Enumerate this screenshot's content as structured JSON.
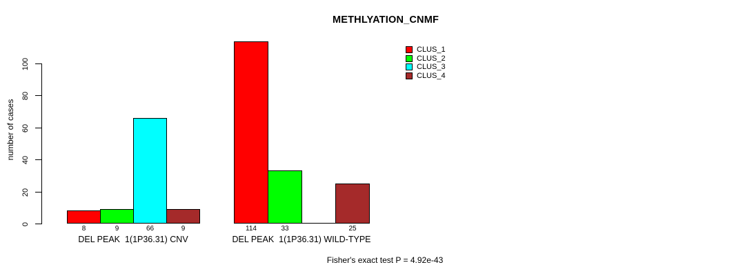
{
  "chart_data": {
    "type": "bar",
    "title": "METHLYATION_CNMF",
    "ylabel": "number of cases",
    "xlabel": "",
    "ylim": [
      0,
      120
    ],
    "yticks": [
      0,
      20,
      40,
      60,
      80,
      100
    ],
    "grid": false,
    "legend_position": "top-right",
    "categories": [
      "DEL PEAK  1(1P36.31) CNV",
      "DEL PEAK  1(1P36.31) WILD-TYPE"
    ],
    "series": [
      {
        "name": "CLUS_1",
        "color": "#FF0000",
        "values": [
          8,
          114
        ]
      },
      {
        "name": "CLUS_2",
        "color": "#00FF00",
        "values": [
          9,
          33
        ]
      },
      {
        "name": "CLUS_3",
        "color": "#00FFFF",
        "values": [
          66,
          0
        ]
      },
      {
        "name": "CLUS_4",
        "color": "#A52A2A",
        "values": [
          9,
          25
        ]
      }
    ],
    "bar_value_labels": [
      [
        "8",
        "9",
        "66",
        "9"
      ],
      [
        "114",
        "33",
        "",
        "25"
      ]
    ],
    "annotation": "Fisher's exact test P = 4.92e-43"
  }
}
